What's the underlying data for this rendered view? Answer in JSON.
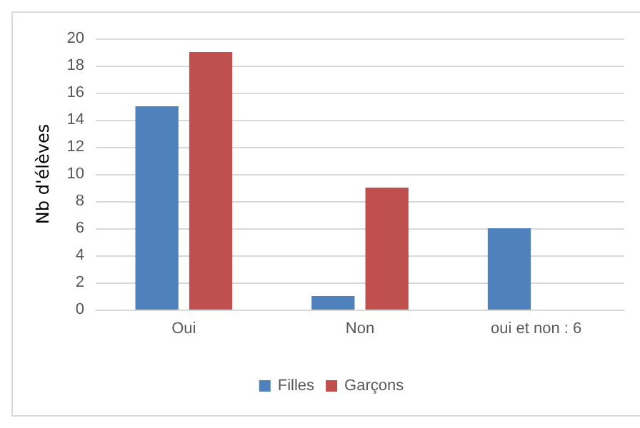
{
  "chart_data": {
    "type": "bar",
    "ylabel": "Nb d'élèves",
    "categories": [
      "Oui",
      "Non",
      "oui et non : 6"
    ],
    "series": [
      {
        "name": "Filles",
        "color": "#4f81bd",
        "values": [
          15,
          1,
          6
        ]
      },
      {
        "name": "Garçons",
        "color": "#c0504d",
        "values": [
          19,
          9,
          0
        ]
      }
    ],
    "ylim": [
      0,
      20
    ],
    "yticks": [
      0,
      2,
      4,
      6,
      8,
      10,
      12,
      14,
      16,
      18,
      20
    ],
    "grid": "y",
    "legend": "bottom"
  }
}
